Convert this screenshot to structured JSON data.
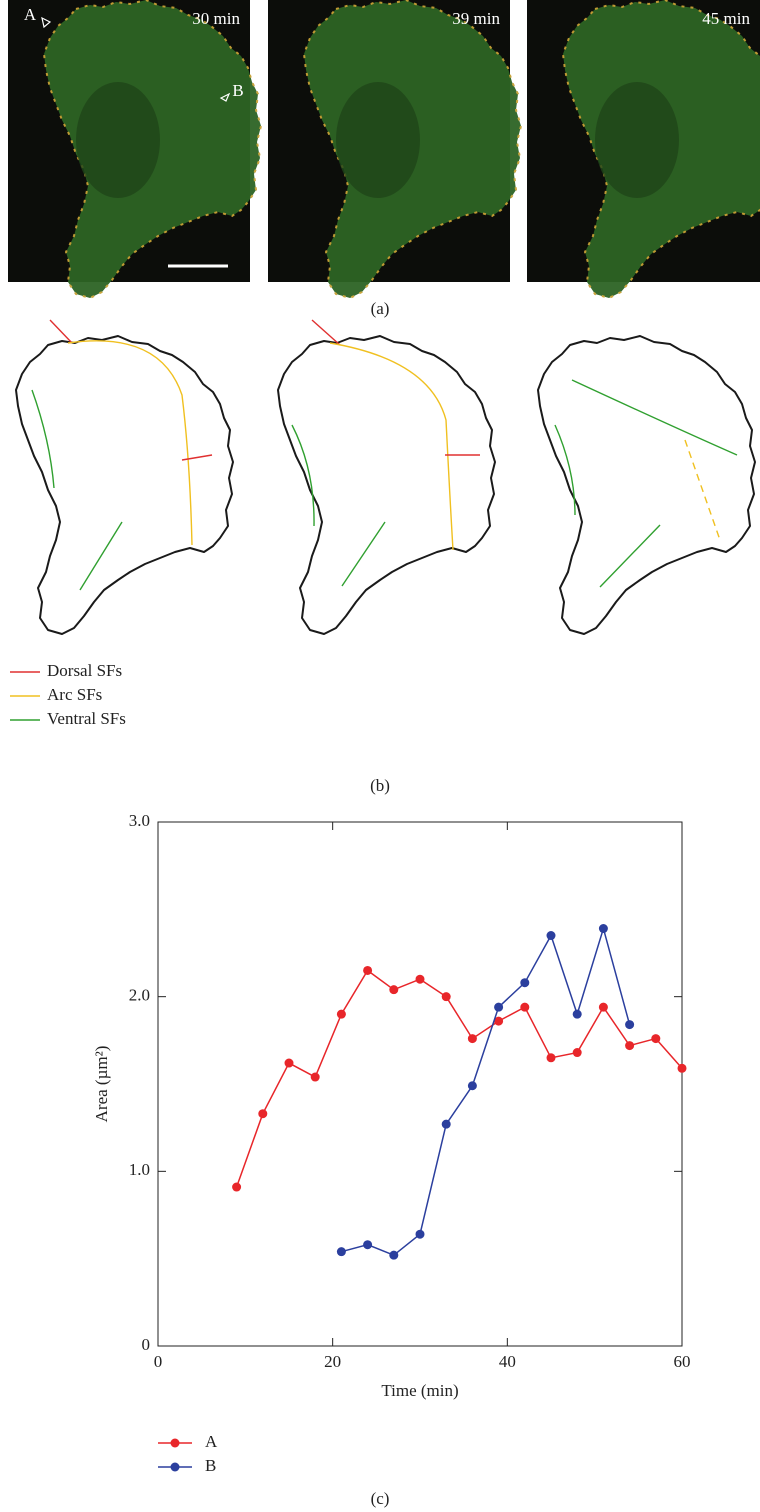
{
  "panel_a": {
    "images": [
      {
        "label": "30 min"
      },
      {
        "label": "39 min"
      },
      {
        "label": "45 min"
      }
    ],
    "markers": [
      "A",
      "B"
    ],
    "caption": "(a)"
  },
  "panel_b": {
    "legend": [
      {
        "label": "Dorsal SFs",
        "color": "#e03030"
      },
      {
        "label": "Arc SFs",
        "color": "#f0c020"
      },
      {
        "label": "Ventral SFs",
        "color": "#30a030"
      }
    ],
    "caption": "(b)"
  },
  "chart_data": {
    "type": "line",
    "x_label": "Time (min)",
    "y_label": "Area (µm²)",
    "caption": "(c)",
    "xlim": [
      0,
      60
    ],
    "ylim": [
      0,
      3
    ],
    "xticks": [
      0,
      20,
      40,
      60
    ],
    "yticks": [
      0,
      {
        "value": 1,
        "label": "1.0"
      },
      {
        "value": 2,
        "label": "2.0"
      },
      {
        "value": 3,
        "label": "3.0"
      }
    ],
    "legend": "below",
    "series": [
      {
        "name": "A",
        "color": "#e8262a",
        "x": [
          9,
          12,
          15,
          18,
          21,
          24,
          27,
          30,
          33,
          36,
          39,
          42,
          45,
          48,
          51,
          54,
          57,
          60
        ],
        "values": [
          0.91,
          1.33,
          1.62,
          1.54,
          1.9,
          2.15,
          2.04,
          2.1,
          2.0,
          1.76,
          1.86,
          1.94,
          1.65,
          1.68,
          1.94,
          1.72,
          1.76,
          1.59
        ]
      },
      {
        "name": "B",
        "color": "#2b3f9e",
        "x": [
          21,
          24,
          27,
          30,
          33,
          36,
          39,
          42,
          45,
          48,
          51,
          54
        ],
        "values": [
          0.54,
          0.58,
          0.52,
          0.64,
          1.27,
          1.49,
          1.94,
          2.08,
          2.35,
          1.9,
          2.39,
          1.84
        ]
      }
    ]
  }
}
